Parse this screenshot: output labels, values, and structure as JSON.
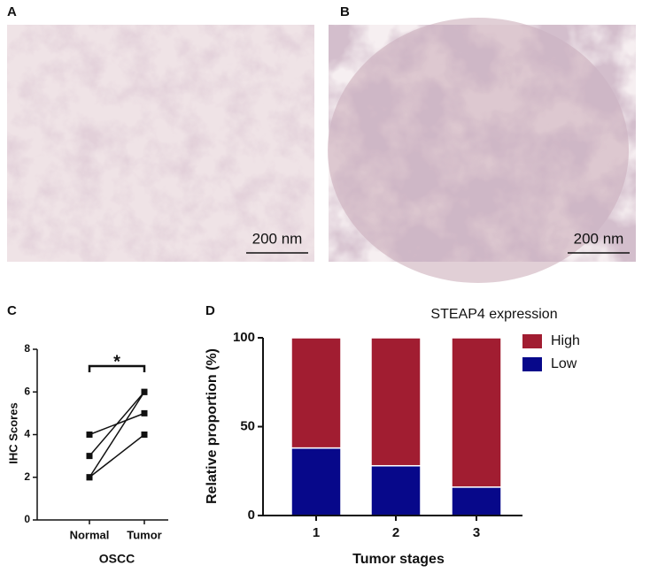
{
  "panel_labels": [
    "A",
    "B",
    "C",
    "D"
  ],
  "images": [
    {
      "scale_label": "200 nm"
    },
    {
      "scale_label": "200 nm"
    }
  ],
  "chart_data": [
    {
      "type": "line",
      "categories": [
        "Normal",
        "Tumor"
      ],
      "xlabel": "OSCC",
      "ylabel": "IHC Scores",
      "ylim": [
        0,
        8
      ],
      "yticks": [
        0,
        2,
        4,
        6,
        8
      ],
      "color": "#111111",
      "annotation": "*",
      "series": [
        {
          "values": [
            4,
            5
          ]
        },
        {
          "values": [
            3,
            6
          ]
        },
        {
          "values": [
            2,
            6
          ]
        },
        {
          "values": [
            2,
            4
          ]
        }
      ]
    },
    {
      "type": "bar",
      "stacked": true,
      "categories": [
        "1",
        "2",
        "3"
      ],
      "xlabel": "Tumor stages",
      "ylabel": "Relative proportion (%)",
      "ylim": [
        0,
        100
      ],
      "yticks": [
        0,
        50,
        100
      ],
      "legend_title": "STEAP4 expression",
      "series": [
        {
          "name": "High",
          "color": "#a11d31",
          "values": [
            62,
            72,
            84
          ]
        },
        {
          "name": "Low",
          "color": "#07088a",
          "values": [
            38,
            28,
            16
          ]
        }
      ]
    }
  ]
}
